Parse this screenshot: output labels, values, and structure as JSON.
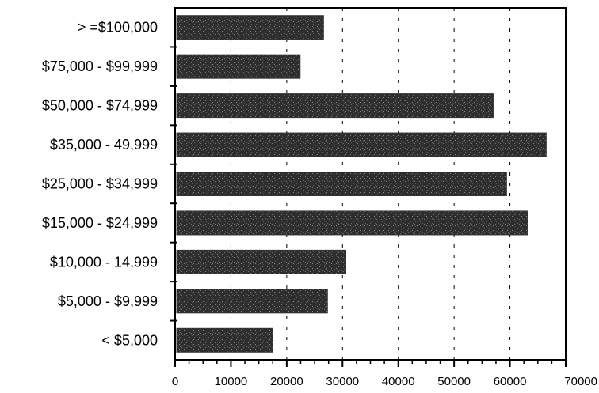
{
  "chart_data": {
    "type": "bar",
    "orientation": "horizontal",
    "title": "",
    "xlabel": "",
    "ylabel": "",
    "categories": [
      "> =$100,000",
      "$75,000 - $99,999",
      "$50,000 - $74,999",
      "$35,000 - 49,999",
      "$25,000 - $34,999",
      "$15,000 - $24,999",
      "$10,000 - 14,999",
      "$5,000 - $9,999",
      "< $5,000"
    ],
    "values": [
      26600,
      22400,
      57000,
      66500,
      59400,
      63200,
      30600,
      27300,
      17500
    ],
    "xlim": [
      0,
      70000
    ],
    "x_ticks": [
      0,
      10000,
      20000,
      30000,
      40000,
      50000,
      60000,
      70000
    ],
    "x_tick_labels": [
      "0",
      "10000",
      "20000",
      "30000",
      "40000",
      "50000",
      "60000",
      "70000"
    ],
    "grid": "vertical dashed",
    "legend": "none",
    "bar_color": "#333333"
  }
}
